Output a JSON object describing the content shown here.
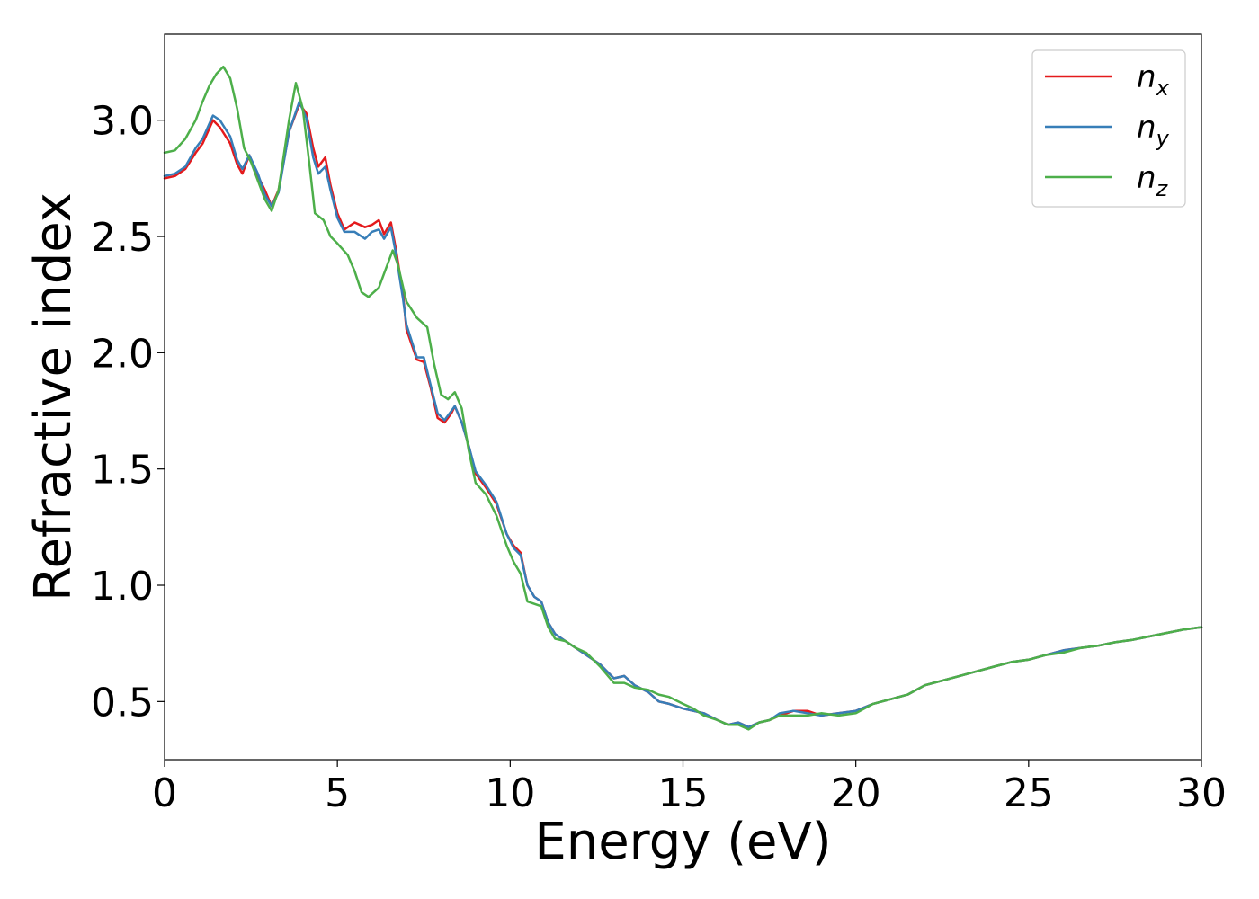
{
  "chart_data": {
    "type": "line",
    "title": "",
    "xlabel": "Energy (eV)",
    "ylabel": "Refractive index",
    "xlim": [
      0,
      30
    ],
    "ylim": [
      0.25,
      3.37
    ],
    "xticks": [
      0,
      5,
      10,
      15,
      20,
      25,
      30
    ],
    "xtick_labels": [
      "0",
      "5",
      "10",
      "15",
      "20",
      "25",
      "30"
    ],
    "yticks": [
      0.5,
      1.0,
      1.5,
      2.0,
      2.5,
      3.0
    ],
    "ytick_labels": [
      "0.5",
      "1.0",
      "1.5",
      "2.0",
      "2.5",
      "3.0"
    ],
    "grid": false,
    "legend_position": "top-right",
    "series": [
      {
        "name": "n_x",
        "legend_base": "n",
        "legend_sub": "x",
        "color": "#e41a1c",
        "points": [
          [
            0,
            2.75
          ],
          [
            0.3,
            2.76
          ],
          [
            0.6,
            2.79
          ],
          [
            0.9,
            2.86
          ],
          [
            1.1,
            2.9
          ],
          [
            1.4,
            3.0
          ],
          [
            1.6,
            2.97
          ],
          [
            1.9,
            2.9
          ],
          [
            2.1,
            2.81
          ],
          [
            2.25,
            2.77
          ],
          [
            2.45,
            2.85
          ],
          [
            2.7,
            2.76
          ],
          [
            2.9,
            2.7
          ],
          [
            3.1,
            2.63
          ],
          [
            3.3,
            2.7
          ],
          [
            3.6,
            2.95
          ],
          [
            3.9,
            3.07
          ],
          [
            4.1,
            3.03
          ],
          [
            4.3,
            2.88
          ],
          [
            4.45,
            2.8
          ],
          [
            4.65,
            2.84
          ],
          [
            4.8,
            2.72
          ],
          [
            5.0,
            2.6
          ],
          [
            5.2,
            2.53
          ],
          [
            5.5,
            2.56
          ],
          [
            5.8,
            2.54
          ],
          [
            6.0,
            2.55
          ],
          [
            6.2,
            2.57
          ],
          [
            6.35,
            2.51
          ],
          [
            6.55,
            2.56
          ],
          [
            6.7,
            2.44
          ],
          [
            6.9,
            2.25
          ],
          [
            7.0,
            2.1
          ],
          [
            7.3,
            1.97
          ],
          [
            7.5,
            1.96
          ],
          [
            7.7,
            1.85
          ],
          [
            7.9,
            1.72
          ],
          [
            8.1,
            1.7
          ],
          [
            8.3,
            1.74
          ],
          [
            8.4,
            1.77
          ],
          [
            8.6,
            1.7
          ],
          [
            8.8,
            1.6
          ],
          [
            9.0,
            1.48
          ],
          [
            9.3,
            1.42
          ],
          [
            9.6,
            1.35
          ],
          [
            9.9,
            1.22
          ],
          [
            10.1,
            1.17
          ],
          [
            10.3,
            1.14
          ],
          [
            10.5,
            1.0
          ],
          [
            10.7,
            0.95
          ],
          [
            10.9,
            0.93
          ],
          [
            11.1,
            0.84
          ],
          [
            11.3,
            0.79
          ],
          [
            11.6,
            0.76
          ],
          [
            11.9,
            0.73
          ],
          [
            12.2,
            0.7
          ],
          [
            12.6,
            0.66
          ],
          [
            13.0,
            0.6
          ],
          [
            13.3,
            0.61
          ],
          [
            13.6,
            0.57
          ],
          [
            14.0,
            0.54
          ],
          [
            14.3,
            0.5
          ],
          [
            14.6,
            0.49
          ],
          [
            15.0,
            0.47
          ],
          [
            15.3,
            0.46
          ],
          [
            15.6,
            0.45
          ],
          [
            16.0,
            0.42
          ],
          [
            16.3,
            0.4
          ],
          [
            16.6,
            0.41
          ],
          [
            16.9,
            0.39
          ],
          [
            17.2,
            0.41
          ],
          [
            17.5,
            0.42
          ],
          [
            17.8,
            0.44
          ],
          [
            18.2,
            0.46
          ],
          [
            18.6,
            0.46
          ],
          [
            19.0,
            0.44
          ],
          [
            19.5,
            0.45
          ],
          [
            20.0,
            0.46
          ],
          [
            20.5,
            0.49
          ],
          [
            21.0,
            0.51
          ],
          [
            21.5,
            0.53
          ],
          [
            22.0,
            0.57
          ],
          [
            22.5,
            0.59
          ],
          [
            23.0,
            0.61
          ],
          [
            23.5,
            0.63
          ],
          [
            24.0,
            0.65
          ],
          [
            24.5,
            0.67
          ],
          [
            25.0,
            0.68
          ],
          [
            25.5,
            0.7
          ],
          [
            26.0,
            0.72
          ],
          [
            26.5,
            0.73
          ],
          [
            27.0,
            0.74
          ],
          [
            27.5,
            0.755
          ],
          [
            28.0,
            0.765
          ],
          [
            28.5,
            0.78
          ],
          [
            29.0,
            0.795
          ],
          [
            29.5,
            0.81
          ],
          [
            30.0,
            0.82
          ]
        ]
      },
      {
        "name": "n_y",
        "legend_base": "n",
        "legend_sub": "y",
        "color": "#377eb8",
        "points": [
          [
            0,
            2.76
          ],
          [
            0.3,
            2.77
          ],
          [
            0.6,
            2.8
          ],
          [
            0.9,
            2.88
          ],
          [
            1.1,
            2.92
          ],
          [
            1.4,
            3.02
          ],
          [
            1.6,
            3.0
          ],
          [
            1.9,
            2.93
          ],
          [
            2.1,
            2.83
          ],
          [
            2.25,
            2.79
          ],
          [
            2.45,
            2.85
          ],
          [
            2.7,
            2.77
          ],
          [
            2.9,
            2.68
          ],
          [
            3.1,
            2.63
          ],
          [
            3.3,
            2.69
          ],
          [
            3.6,
            2.95
          ],
          [
            3.9,
            3.08
          ],
          [
            4.1,
            3.01
          ],
          [
            4.3,
            2.84
          ],
          [
            4.45,
            2.77
          ],
          [
            4.65,
            2.8
          ],
          [
            4.8,
            2.7
          ],
          [
            5.0,
            2.58
          ],
          [
            5.2,
            2.52
          ],
          [
            5.5,
            2.52
          ],
          [
            5.8,
            2.49
          ],
          [
            6.0,
            2.52
          ],
          [
            6.2,
            2.53
          ],
          [
            6.35,
            2.49
          ],
          [
            6.55,
            2.54
          ],
          [
            6.7,
            2.42
          ],
          [
            6.9,
            2.23
          ],
          [
            7.0,
            2.12
          ],
          [
            7.3,
            1.98
          ],
          [
            7.5,
            1.98
          ],
          [
            7.7,
            1.86
          ],
          [
            7.9,
            1.74
          ],
          [
            8.1,
            1.71
          ],
          [
            8.3,
            1.75
          ],
          [
            8.4,
            1.77
          ],
          [
            8.6,
            1.7
          ],
          [
            8.8,
            1.6
          ],
          [
            9.0,
            1.49
          ],
          [
            9.3,
            1.43
          ],
          [
            9.6,
            1.36
          ],
          [
            9.9,
            1.22
          ],
          [
            10.1,
            1.16
          ],
          [
            10.3,
            1.13
          ],
          [
            10.5,
            1.0
          ],
          [
            10.7,
            0.95
          ],
          [
            10.9,
            0.93
          ],
          [
            11.1,
            0.84
          ],
          [
            11.3,
            0.79
          ],
          [
            11.6,
            0.76
          ],
          [
            11.9,
            0.73
          ],
          [
            12.2,
            0.7
          ],
          [
            12.6,
            0.66
          ],
          [
            13.0,
            0.6
          ],
          [
            13.3,
            0.61
          ],
          [
            13.6,
            0.57
          ],
          [
            14.0,
            0.54
          ],
          [
            14.3,
            0.5
          ],
          [
            14.6,
            0.49
          ],
          [
            15.0,
            0.47
          ],
          [
            15.3,
            0.46
          ],
          [
            15.6,
            0.45
          ],
          [
            16.0,
            0.42
          ],
          [
            16.3,
            0.4
          ],
          [
            16.6,
            0.41
          ],
          [
            16.9,
            0.39
          ],
          [
            17.2,
            0.41
          ],
          [
            17.5,
            0.42
          ],
          [
            17.8,
            0.45
          ],
          [
            18.2,
            0.46
          ],
          [
            18.6,
            0.45
          ],
          [
            19.0,
            0.44
          ],
          [
            19.5,
            0.45
          ],
          [
            20.0,
            0.46
          ],
          [
            20.5,
            0.49
          ],
          [
            21.0,
            0.51
          ],
          [
            21.5,
            0.53
          ],
          [
            22.0,
            0.57
          ],
          [
            22.5,
            0.59
          ],
          [
            23.0,
            0.61
          ],
          [
            23.5,
            0.63
          ],
          [
            24.0,
            0.65
          ],
          [
            24.5,
            0.67
          ],
          [
            25.0,
            0.68
          ],
          [
            25.5,
            0.7
          ],
          [
            26.0,
            0.72
          ],
          [
            26.5,
            0.73
          ],
          [
            27.0,
            0.74
          ],
          [
            27.5,
            0.755
          ],
          [
            28.0,
            0.765
          ],
          [
            28.5,
            0.78
          ],
          [
            29.0,
            0.795
          ],
          [
            29.5,
            0.81
          ],
          [
            30.0,
            0.82
          ]
        ]
      },
      {
        "name": "n_z",
        "legend_base": "n",
        "legend_sub": "z",
        "color": "#4daf4a",
        "points": [
          [
            0,
            2.86
          ],
          [
            0.3,
            2.87
          ],
          [
            0.6,
            2.92
          ],
          [
            0.9,
            3.0
          ],
          [
            1.1,
            3.08
          ],
          [
            1.3,
            3.15
          ],
          [
            1.5,
            3.2
          ],
          [
            1.7,
            3.23
          ],
          [
            1.9,
            3.18
          ],
          [
            2.1,
            3.05
          ],
          [
            2.3,
            2.88
          ],
          [
            2.5,
            2.82
          ],
          [
            2.7,
            2.74
          ],
          [
            2.9,
            2.66
          ],
          [
            3.1,
            2.61
          ],
          [
            3.3,
            2.7
          ],
          [
            3.6,
            3.0
          ],
          [
            3.8,
            3.16
          ],
          [
            4.0,
            3.05
          ],
          [
            4.2,
            2.8
          ],
          [
            4.35,
            2.6
          ],
          [
            4.6,
            2.57
          ],
          [
            4.8,
            2.5
          ],
          [
            5.0,
            2.47
          ],
          [
            5.3,
            2.42
          ],
          [
            5.5,
            2.35
          ],
          [
            5.7,
            2.26
          ],
          [
            5.9,
            2.24
          ],
          [
            6.2,
            2.28
          ],
          [
            6.45,
            2.38
          ],
          [
            6.6,
            2.44
          ],
          [
            6.75,
            2.38
          ],
          [
            7.0,
            2.22
          ],
          [
            7.3,
            2.15
          ],
          [
            7.6,
            2.11
          ],
          [
            7.8,
            1.95
          ],
          [
            8.0,
            1.82
          ],
          [
            8.2,
            1.8
          ],
          [
            8.4,
            1.83
          ],
          [
            8.6,
            1.76
          ],
          [
            8.8,
            1.58
          ],
          [
            9.0,
            1.44
          ],
          [
            9.3,
            1.39
          ],
          [
            9.6,
            1.3
          ],
          [
            9.9,
            1.17
          ],
          [
            10.1,
            1.1
          ],
          [
            10.3,
            1.05
          ],
          [
            10.5,
            0.93
          ],
          [
            10.7,
            0.92
          ],
          [
            10.9,
            0.91
          ],
          [
            11.1,
            0.82
          ],
          [
            11.3,
            0.77
          ],
          [
            11.6,
            0.76
          ],
          [
            11.9,
            0.73
          ],
          [
            12.2,
            0.71
          ],
          [
            12.6,
            0.65
          ],
          [
            13.0,
            0.58
          ],
          [
            13.3,
            0.58
          ],
          [
            13.6,
            0.56
          ],
          [
            14.0,
            0.55
          ],
          [
            14.3,
            0.53
          ],
          [
            14.6,
            0.52
          ],
          [
            15.0,
            0.49
          ],
          [
            15.3,
            0.47
          ],
          [
            15.6,
            0.44
          ],
          [
            16.0,
            0.42
          ],
          [
            16.3,
            0.4
          ],
          [
            16.6,
            0.4
          ],
          [
            16.9,
            0.38
          ],
          [
            17.2,
            0.41
          ],
          [
            17.5,
            0.42
          ],
          [
            17.8,
            0.44
          ],
          [
            18.2,
            0.44
          ],
          [
            18.6,
            0.44
          ],
          [
            19.0,
            0.45
          ],
          [
            19.5,
            0.44
          ],
          [
            20.0,
            0.45
          ],
          [
            20.5,
            0.49
          ],
          [
            21.0,
            0.51
          ],
          [
            21.5,
            0.53
          ],
          [
            22.0,
            0.57
          ],
          [
            22.5,
            0.59
          ],
          [
            23.0,
            0.61
          ],
          [
            23.5,
            0.63
          ],
          [
            24.0,
            0.65
          ],
          [
            24.5,
            0.67
          ],
          [
            25.0,
            0.68
          ],
          [
            25.5,
            0.7
          ],
          [
            26.0,
            0.71
          ],
          [
            26.5,
            0.73
          ],
          [
            27.0,
            0.74
          ],
          [
            27.5,
            0.755
          ],
          [
            28.0,
            0.765
          ],
          [
            28.5,
            0.78
          ],
          [
            29.0,
            0.795
          ],
          [
            29.5,
            0.81
          ],
          [
            30.0,
            0.82
          ]
        ]
      }
    ]
  }
}
